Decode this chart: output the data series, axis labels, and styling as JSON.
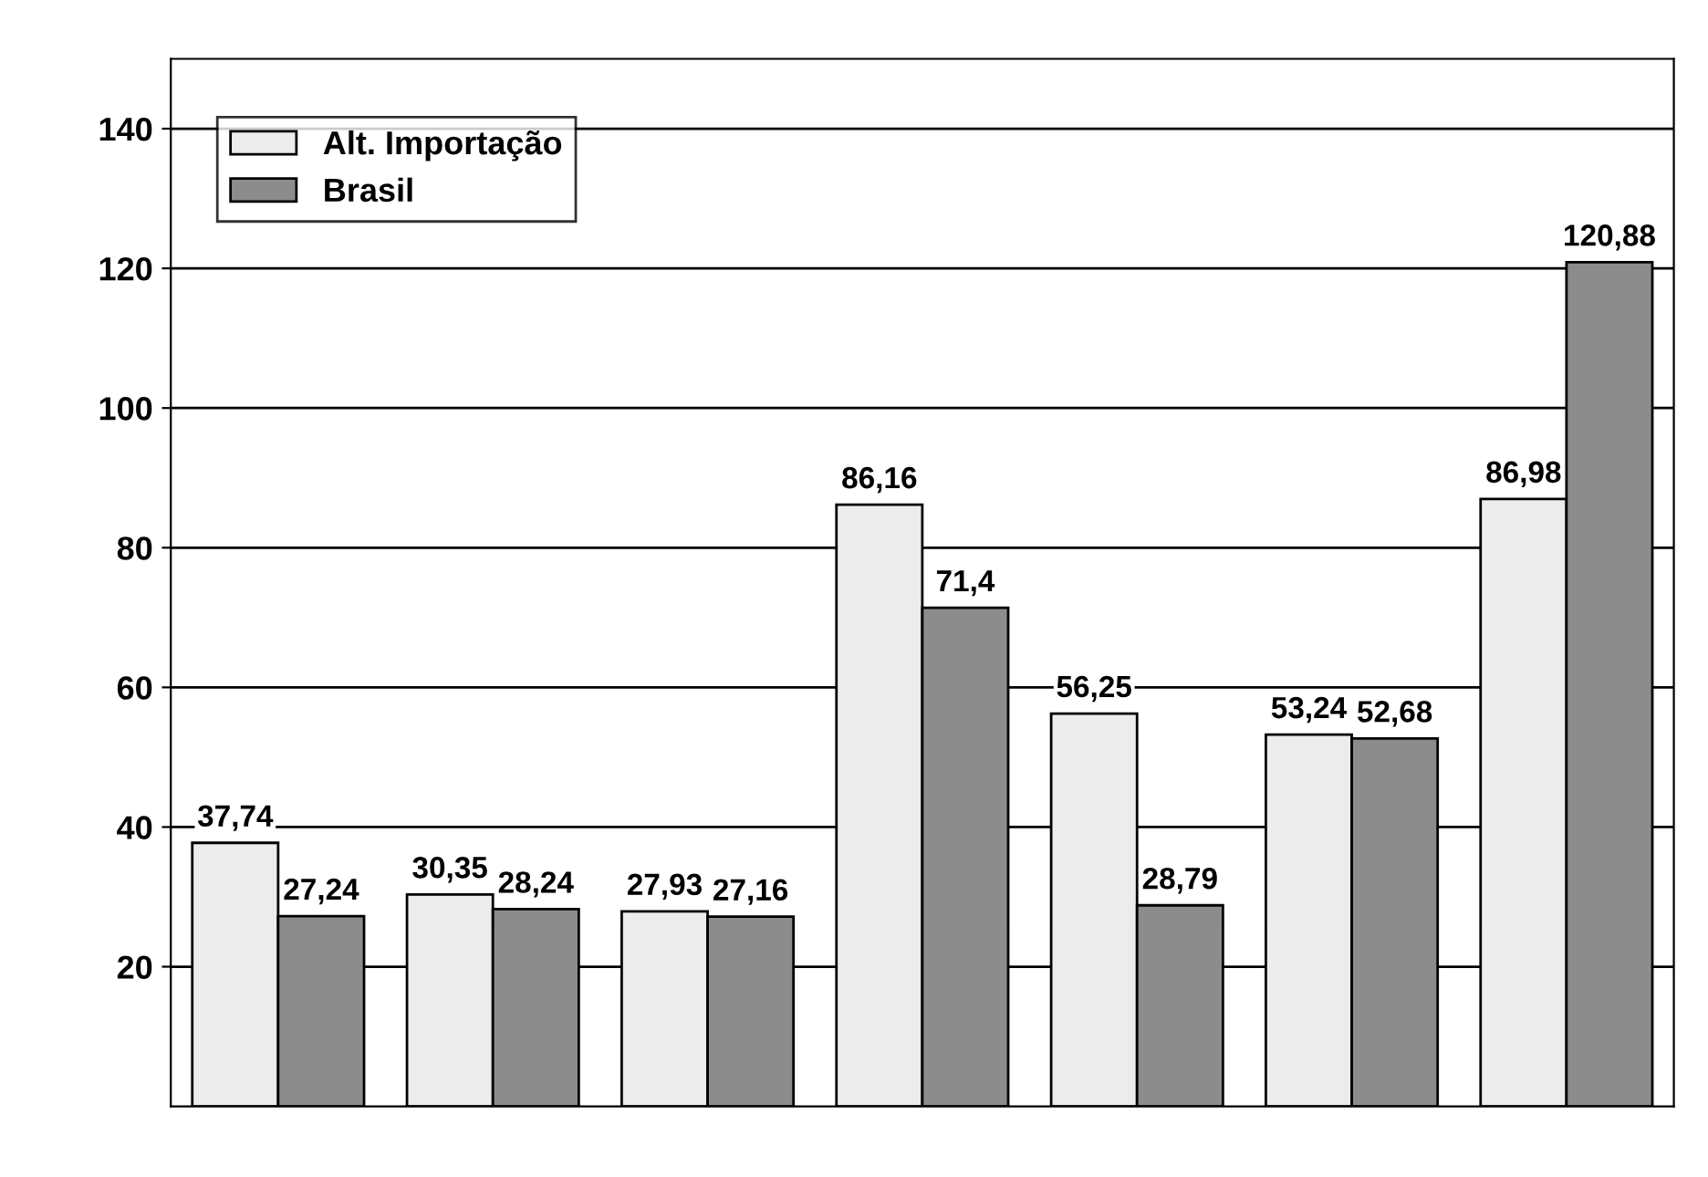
{
  "chart_data": {
    "type": "bar",
    "categories": [
      null,
      null,
      null,
      null,
      null,
      null,
      null
    ],
    "series": [
      {
        "name": "Alt. Importação",
        "color": "#ececec",
        "values": [
          37.74,
          30.35,
          27.93,
          86.16,
          56.25,
          53.24,
          86.98
        ],
        "value_labels": [
          "37,74",
          "30,35",
          "27,93",
          "86,16",
          "56,25",
          "53,24",
          "86,98"
        ]
      },
      {
        "name": "Brasil",
        "color": "#8c8c8c",
        "values": [
          27.24,
          28.24,
          27.16,
          71.4,
          28.79,
          52.68,
          120.88
        ],
        "value_labels": [
          "27,24",
          "28,24",
          "27,16",
          "71,4",
          "28,79",
          "52,68",
          "120,88"
        ]
      }
    ],
    "ylim": [
      0,
      150
    ],
    "yticks": [
      20,
      40,
      60,
      80,
      100,
      120,
      140
    ],
    "grid": "y",
    "legend": "top left"
  }
}
